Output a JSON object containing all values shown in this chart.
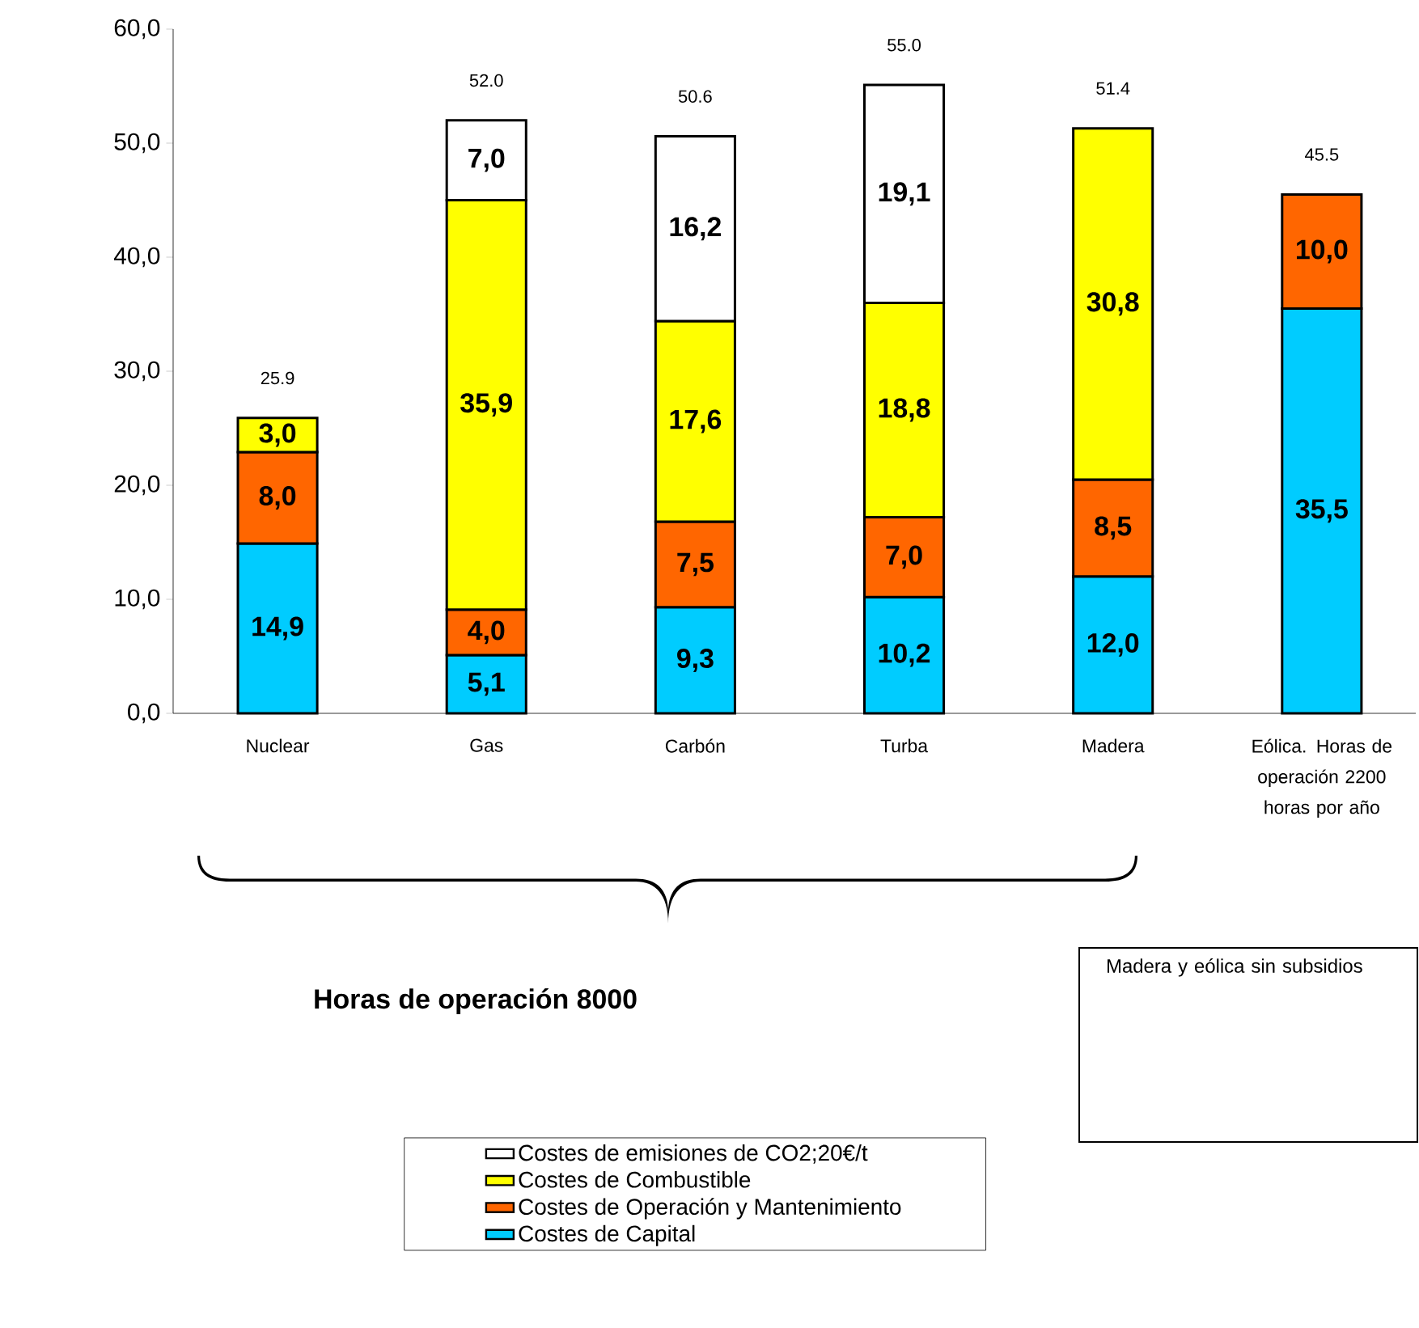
{
  "chart_data": {
    "type": "bar",
    "stacked": true,
    "categories": [
      "Nuclear",
      "Gas",
      "Carbón",
      "Turba",
      "Madera",
      "Eólica. Horas de operación 2200 horas por año"
    ],
    "series": [
      {
        "name": "Costes de Capital",
        "color": "#00ccff",
        "values": [
          14.9,
          5.1,
          9.3,
          10.2,
          12.0,
          35.5
        ],
        "value_labels": [
          "14,9",
          "5,1",
          "9,3",
          "10,2",
          "12,0",
          "35,5"
        ]
      },
      {
        "name": "Costes de Operación y Mantenimiento",
        "color": "#ff6600",
        "values": [
          8.0,
          4.0,
          7.5,
          7.0,
          8.5,
          10.0
        ],
        "value_labels": [
          "8,0",
          "4,0",
          "7,5",
          "7,0",
          "8,5",
          "10,0"
        ]
      },
      {
        "name": "Costes de Combustible",
        "color": "#ffff00",
        "values": [
          3.0,
          35.9,
          17.6,
          18.8,
          30.8,
          null
        ],
        "value_labels": [
          "3,0",
          "35,9",
          "17,6",
          "18,8",
          "30,8",
          null
        ]
      },
      {
        "name": "Costes de emisiones de CO2;20€/t",
        "color": "#ffffff",
        "values": [
          null,
          7.0,
          16.2,
          19.1,
          null,
          null
        ],
        "value_labels": [
          null,
          "7,0",
          "16,2",
          "19,1",
          null,
          null
        ]
      }
    ],
    "totals": [
      "25.9",
      "52.0",
      "50.6",
      "55.0",
      "51.4",
      "45.5"
    ],
    "ylim": [
      0,
      60
    ],
    "yticks": [
      {
        "value": 0,
        "label": "0,0"
      },
      {
        "value": 10,
        "label": "10,0"
      },
      {
        "value": 20,
        "label": "20,0"
      },
      {
        "value": 30,
        "label": "30,0"
      },
      {
        "value": 40,
        "label": "40,0"
      },
      {
        "value": 50,
        "label": "50,0"
      },
      {
        "value": 60,
        "label": "60,0"
      }
    ],
    "legend": "bottom",
    "annotations": [
      "Horas de operación 8000",
      "Madera y eólica sin subsidios"
    ]
  }
}
